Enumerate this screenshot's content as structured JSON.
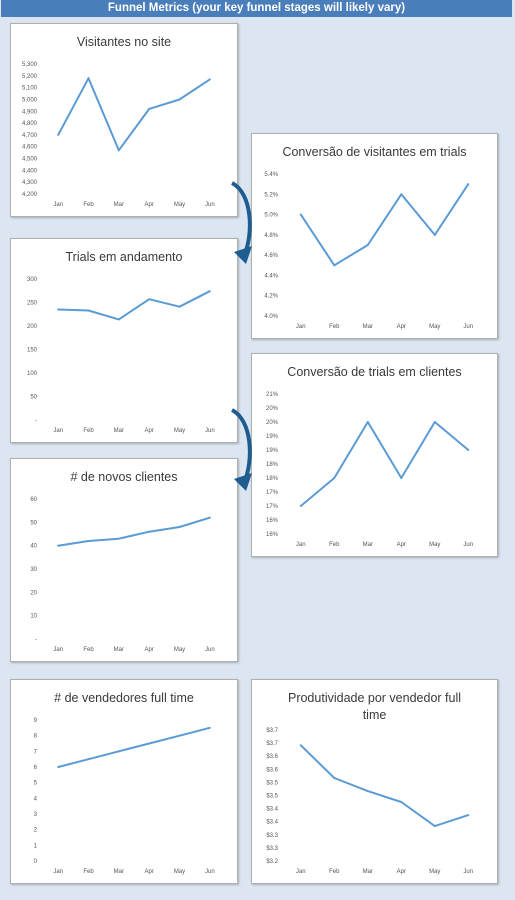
{
  "header": {
    "title": "Funnel Metrics (your key funnel stages will likely vary)"
  },
  "colors": {
    "line": "#5b9bd5",
    "banner": "#4a7ebb",
    "arrow": "#1f5c8f"
  },
  "chart_data": [
    {
      "id": "c1",
      "type": "line",
      "title": [
        "Visitantes no site"
      ],
      "categories": [
        "Jan",
        "Feb",
        "Mar",
        "Apr",
        "May",
        "Jun"
      ],
      "values": [
        4700,
        5180,
        4570,
        4920,
        5000,
        5170
      ],
      "ylim": [
        4200,
        5300
      ],
      "yticks": [
        "4,200",
        "4,300",
        "4,400",
        "4,500",
        "4,600",
        "4,700",
        "4,800",
        "4,900",
        "5,000",
        "5,100",
        "5,200",
        "5,300"
      ]
    },
    {
      "id": "c2",
      "type": "line",
      "title": [
        "Conversão de visitantes em trials"
      ],
      "categories": [
        "Jan",
        "Feb",
        "Mar",
        "Apr",
        "May",
        "Jun"
      ],
      "values": [
        5.0,
        4.5,
        4.7,
        5.2,
        4.8,
        5.3
      ],
      "ylim": [
        4.0,
        5.4
      ],
      "yticks": [
        "4.0%",
        "4.2%",
        "4.4%",
        "4.6%",
        "4.8%",
        "5.0%",
        "5.2%",
        "5.4%"
      ]
    },
    {
      "id": "c3",
      "type": "line",
      "title": [
        "Trials em andamento"
      ],
      "categories": [
        "Jan",
        "Feb",
        "Mar",
        "Apr",
        "May",
        "Jun"
      ],
      "values": [
        235,
        233,
        214,
        257,
        241,
        274
      ],
      "ylim": [
        0,
        300
      ],
      "yticks": [
        "-",
        "50",
        "100",
        "150",
        "200",
        "250",
        "300"
      ]
    },
    {
      "id": "c4",
      "type": "line",
      "title": [
        "Conversão de trials em clientes"
      ],
      "categories": [
        "Jan",
        "Feb",
        "Mar",
        "Apr",
        "May",
        "Jun"
      ],
      "values": [
        17,
        18,
        20,
        18,
        20,
        19
      ],
      "ylim": [
        16,
        21
      ],
      "yticks": [
        "16%",
        "16%",
        "17%",
        "17%",
        "18%",
        "18%",
        "19%",
        "19%",
        "20%",
        "20%",
        "21%"
      ]
    },
    {
      "id": "c5",
      "type": "line",
      "title": [
        "# de novos clientes"
      ],
      "categories": [
        "Jan",
        "Feb",
        "Mar",
        "Apr",
        "May",
        "Jun"
      ],
      "values": [
        40,
        42,
        43,
        46,
        48,
        52
      ],
      "ylim": [
        0,
        60
      ],
      "yticks": [
        "-",
        "10",
        "20",
        "30",
        "40",
        "50",
        "60"
      ]
    },
    {
      "id": "c6",
      "type": "line",
      "title": [
        "# de vendedores full time"
      ],
      "categories": [
        "Jan",
        "Feb",
        "Mar",
        "Apr",
        "May",
        "Jun"
      ],
      "values": [
        6.0,
        6.5,
        7.0,
        7.5,
        8.0,
        8.5
      ],
      "ylim": [
        0,
        9
      ],
      "yticks": [
        "0",
        "1",
        "2",
        "3",
        "4",
        "5",
        "6",
        "7",
        "8",
        "9"
      ]
    },
    {
      "id": "c7",
      "type": "line",
      "title": [
        "Produtividade por vendedor full",
        "time"
      ],
      "categories": [
        "Jan",
        "Feb",
        "Mar",
        "Apr",
        "May",
        "Jun"
      ],
      "values": [
        3.73,
        3.58,
        3.52,
        3.47,
        3.36,
        3.41
      ],
      "ylim": [
        3.2,
        3.8
      ],
      "yticks": [
        "$3.2",
        "$3.3",
        "$3.3",
        "$3.4",
        "$3.4",
        "$3.5",
        "$3.5",
        "$3.6",
        "$3.6",
        "$3.7",
        "$3.7"
      ]
    }
  ]
}
